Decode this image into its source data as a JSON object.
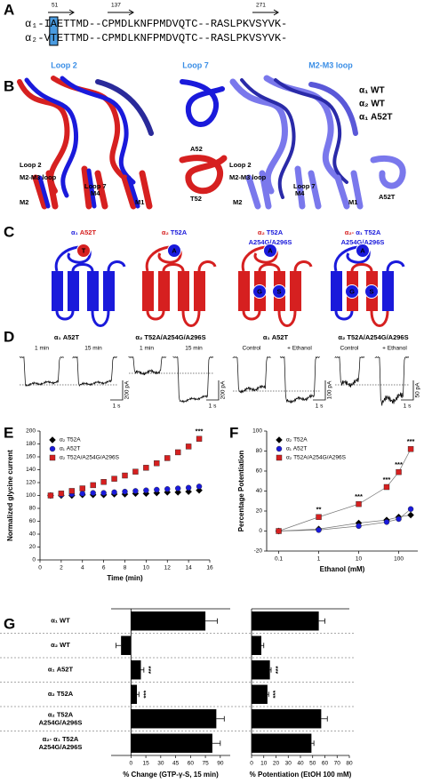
{
  "panel_labels": [
    "A",
    "B",
    "C",
    "D"
  ],
  "sequence": {
    "markers": [
      "51",
      "137",
      "271"
    ],
    "rows": [
      {
        "label": "α₁-",
        "lead": "I",
        "site": "A",
        "rest": "ETTMD--CPMDLKNFPMDVQTC--RASLPKVSYVK-"
      },
      {
        "label": "α₂-",
        "lead": "V",
        "site": "T",
        "rest": "ETTMD--CPMDLKNFPMDVQTC--RASLPKVSYVK-"
      }
    ],
    "loops": [
      "Loop 2",
      "Loop 7",
      "M2-M3 loop"
    ]
  },
  "structures": {
    "left": [
      "Loop 2",
      "M2-M3 loop",
      "Loop 7",
      "M2",
      "M4",
      "M1"
    ],
    "middle": [
      "A52",
      "T52"
    ],
    "right": [
      "Loop 2",
      "M2-M3 loop",
      "Loop 7",
      "M2",
      "M4",
      "M1"
    ],
    "fragment": "A52T",
    "legend": [
      {
        "text": "α₁ WT",
        "color": "#1a1adb"
      },
      {
        "text": "α₂ WT",
        "color": "#d62020"
      },
      {
        "text": "α₁ A52T",
        "color": "#7a78ec"
      }
    ]
  },
  "topologies": [
    {
      "title": [
        [
          {
            "text": "α₁",
            "color": "#1a1adb"
          },
          {
            "text": "A52T",
            "color": "#d62020"
          }
        ]
      ],
      "sites": [
        "T"
      ]
    },
    {
      "title": [
        [
          {
            "text": "α₂",
            "color": "#d62020"
          },
          {
            "text": "T52A",
            "color": "#1a1adb"
          }
        ]
      ],
      "sites": [
        "A"
      ]
    },
    {
      "title": [
        [
          {
            "text": "α₂",
            "color": "#d62020"
          },
          {
            "text": "T52A",
            "color": "#1a1adb"
          }
        ],
        [
          {
            "text": "A254G/A296S",
            "color": "#1a1adb"
          }
        ]
      ],
      "sites": [
        "A",
        "G",
        "S"
      ]
    },
    {
      "title": [
        [
          {
            "text": "α₂-",
            "color": "#d62020"
          },
          {
            "text": "α₁",
            "color": "#1a1adb"
          },
          {
            "text": "T52A",
            "color": "#1a1adb"
          }
        ],
        [
          {
            "text": "A254G/A296S",
            "color": "#1a1adb"
          }
        ]
      ],
      "sites": [
        "A",
        "G",
        "S"
      ]
    }
  ],
  "traces": [
    {
      "title": "α₁ A52T",
      "labels": [
        "1 min",
        "15 min"
      ],
      "scale": "200 pA",
      "time": "1 s"
    },
    {
      "title": "α₂ T52A/A254G/A296S",
      "labels": [
        "1 min",
        "15 min"
      ],
      "scale": "200 pA",
      "time": "1 s"
    },
    {
      "title": "α₁ A52T",
      "labels": [
        "Control",
        "+ Ethanol"
      ],
      "scale": "100 pA",
      "time": "1 s"
    },
    {
      "title": "α₂ T52A/A254G/A296S",
      "labels": [
        "Control",
        "+ Ethanol"
      ],
      "scale": "50 pA",
      "time": "1 s"
    }
  ],
  "chart_data": [
    {
      "type": "line",
      "panel": "E",
      "xlabel": "Time (min)",
      "ylabel": "Normalized glycine current",
      "xscale": "linear",
      "lines": false,
      "legend": "upper left",
      "x": [
        1,
        2,
        3,
        4,
        5,
        6,
        7,
        8,
        9,
        10,
        11,
        12,
        13,
        14,
        15
      ],
      "xlim": [
        0,
        16
      ],
      "xticks": [
        0,
        2,
        4,
        6,
        8,
        10,
        12,
        14,
        16
      ],
      "ylim": [
        0,
        200
      ],
      "yticks": [
        0,
        20,
        40,
        60,
        80,
        100,
        120,
        140,
        160,
        180,
        200
      ],
      "series": [
        {
          "name": "α₂ T52A",
          "color": "#000000",
          "marker": "diamond",
          "values": [
            100,
            100,
            100,
            101,
            101,
            101,
            102,
            102,
            103,
            103,
            104,
            105,
            105,
            106,
            108
          ]
        },
        {
          "name": "α₁ A52T",
          "color": "#1a1adb",
          "marker": "circle",
          "values": [
            100,
            101,
            102,
            103,
            104,
            104,
            105,
            106,
            107,
            108,
            109,
            110,
            111,
            112,
            114
          ]
        },
        {
          "name": "α₂ T52A/A254G/A296S",
          "color": "#d62020",
          "marker": "square",
          "values": [
            100,
            103,
            107,
            111,
            116,
            121,
            126,
            131,
            137,
            143,
            150,
            158,
            167,
            176,
            188
          ]
        }
      ],
      "significance": [
        null,
        null,
        null,
        null,
        null,
        null,
        null,
        null,
        null,
        null,
        null,
        null,
        null,
        null,
        "***"
      ]
    },
    {
      "type": "line",
      "panel": "F",
      "xlabel": "Ethanol (mM)",
      "ylabel": "Percentage Potentiation",
      "xscale": "log",
      "lines": true,
      "legend": "upper left",
      "x": [
        0.1,
        1,
        10,
        50,
        100,
        200
      ],
      "xlim": [
        0.05,
        300
      ],
      "xticks": [
        0.1,
        1,
        10,
        100
      ],
      "ylim": [
        -20,
        100
      ],
      "yticks": [
        -20,
        0,
        20,
        40,
        60,
        80,
        100
      ],
      "series": [
        {
          "name": "α₂ T52A",
          "color": "#000000",
          "marker": "diamond",
          "values": [
            0,
            2,
            8,
            11,
            14,
            16
          ]
        },
        {
          "name": "α₁ A52T",
          "color": "#1a1adb",
          "marker": "circle",
          "values": [
            0,
            1,
            5,
            9,
            12,
            22
          ]
        },
        {
          "name": "α₂ T52A/A254G/A296S",
          "color": "#d62020",
          "marker": "square",
          "values": [
            0,
            14,
            27,
            44,
            59,
            82
          ]
        }
      ],
      "significance": [
        null,
        "**",
        "***",
        "***",
        "***",
        "***"
      ]
    },
    {
      "type": "hbar",
      "panel": "G",
      "xlabel": "% Change (GTP-γ-S, 15 min)",
      "color": "#000000",
      "categories": [
        "α₁ WT",
        "α₂ WT",
        "α₁ A52T",
        "α₂ T52A",
        "α₂ T52A\nA254G/A296S",
        "α₂- α₁ T52A\nA254G/A296S"
      ],
      "values": [
        75,
        -10,
        10,
        6,
        86,
        82
      ],
      "errors": [
        12,
        5,
        3,
        2,
        8,
        8
      ],
      "significance": [
        null,
        null,
        "***",
        "***",
        null,
        null
      ],
      "xlim": [
        -20,
        100
      ],
      "xticks": [
        0,
        15,
        30,
        45,
        60,
        75,
        90
      ]
    },
    {
      "type": "hbar",
      "xlabel": "% Potentiation (EtOH 100 mM)",
      "color": "#000000",
      "values": [
        55,
        8,
        15,
        13,
        57,
        49
      ],
      "errors": [
        5,
        2,
        1,
        1,
        5,
        2
      ],
      "significance": [
        null,
        null,
        "***",
        "***",
        null,
        null
      ],
      "xlim": [
        0,
        80
      ],
      "xticks": [
        0,
        10,
        20,
        30,
        40,
        50,
        60,
        70,
        80
      ]
    }
  ]
}
